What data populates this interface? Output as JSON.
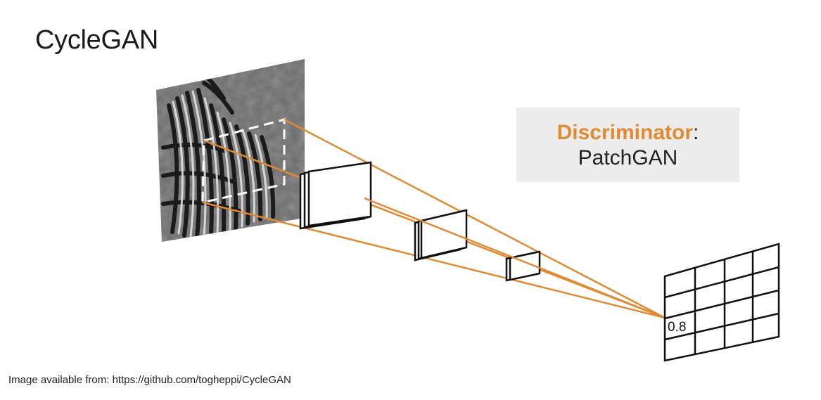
{
  "title": "CycleGAN",
  "callout": {
    "accent": "Discriminator",
    "sep": ":",
    "subtitle": "PatchGAN"
  },
  "output_cell_value": "0.8",
  "credit": "Image available from: https://github.com/togheppi/CycleGAN",
  "colors": {
    "accent": "#e08a34",
    "line": "#111111",
    "callout_bg": "#ececec"
  }
}
